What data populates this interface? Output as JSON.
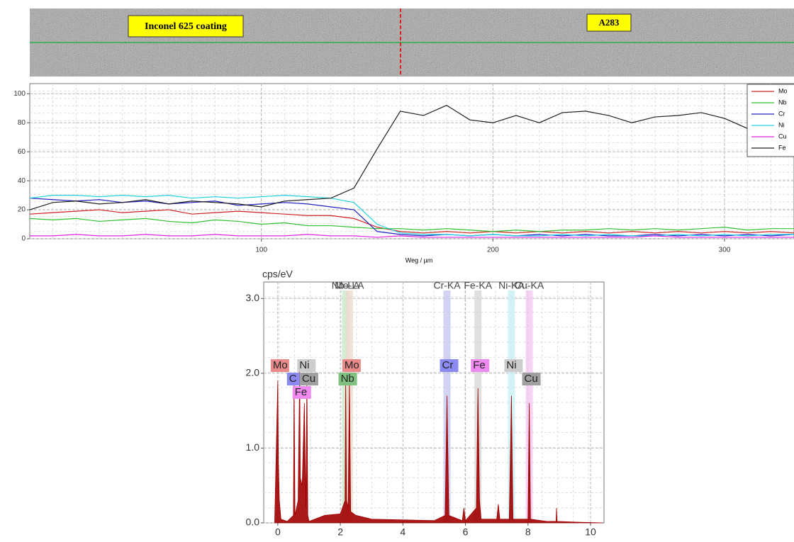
{
  "micrograph": {
    "labels": [
      "Inconel 625 coating",
      "A283"
    ]
  },
  "chart_data": [
    {
      "type": "line",
      "xlabel": "Weg / µm",
      "x": [
        0,
        10,
        20,
        30,
        40,
        50,
        60,
        70,
        80,
        90,
        100,
        110,
        120,
        130,
        140,
        150,
        160,
        170,
        180,
        190,
        200,
        210,
        220,
        230,
        240,
        250,
        260,
        270,
        280,
        290,
        300,
        310,
        320,
        330
      ],
      "xlim": [
        0,
        330
      ],
      "xticks": [
        100,
        200,
        300
      ],
      "ylim": [
        0,
        107
      ],
      "yticks": [
        0,
        20,
        40,
        60,
        80,
        100
      ],
      "grid": true,
      "legend": "upper right",
      "series": [
        {
          "name": "Mo",
          "color": "#d02020",
          "values": [
            17,
            18,
            19,
            20,
            18,
            19,
            20,
            17,
            18,
            19,
            18,
            17,
            16,
            16,
            14,
            8,
            5,
            4,
            5,
            4,
            5,
            4,
            5,
            4,
            5,
            4,
            5,
            4,
            5,
            4,
            5,
            4,
            5,
            4
          ]
        },
        {
          "name": "Nb",
          "color": "#30c030",
          "values": [
            14,
            13,
            14,
            12,
            13,
            14,
            12,
            11,
            13,
            12,
            10,
            11,
            9,
            9,
            8,
            7,
            7,
            6,
            7,
            6,
            5,
            6,
            5,
            6,
            6,
            7,
            6,
            7,
            6,
            7,
            8,
            6,
            7,
            7
          ]
        },
        {
          "name": "Cr",
          "color": "#2020c0",
          "values": [
            28,
            27,
            26,
            27,
            25,
            26,
            24,
            25,
            26,
            23,
            24,
            25,
            24,
            22,
            20,
            5,
            3,
            2,
            3,
            2,
            3,
            2,
            3,
            2,
            3,
            2,
            2,
            3,
            2,
            3,
            2,
            3,
            2,
            3
          ]
        },
        {
          "name": "Ni",
          "color": "#20d0e0",
          "values": [
            28,
            30,
            30,
            29,
            30,
            29,
            30,
            28,
            29,
            28,
            29,
            30,
            29,
            28,
            25,
            10,
            4,
            3,
            3,
            2,
            3,
            2,
            2,
            3,
            2,
            3,
            2,
            2,
            3,
            2,
            3,
            2,
            3,
            3
          ]
        },
        {
          "name": "Cu",
          "color": "#e020e0",
          "values": [
            2,
            2,
            3,
            2,
            2,
            3,
            2,
            2,
            3,
            2,
            2,
            2,
            3,
            2,
            2,
            1,
            2,
            1,
            1,
            1,
            1,
            1,
            1,
            1,
            1,
            1,
            1,
            2,
            1,
            1,
            1,
            1,
            1,
            1
          ]
        },
        {
          "name": "Fe",
          "color": "#202020",
          "values": [
            20,
            25,
            26,
            24,
            25,
            27,
            24,
            26,
            25,
            24,
            22,
            26,
            27,
            28,
            35,
            62,
            88,
            85,
            92,
            82,
            80,
            85,
            80,
            87,
            88,
            85,
            80,
            84,
            85,
            87,
            83,
            76,
            78,
            80
          ]
        }
      ]
    },
    {
      "type": "area",
      "ylabel": "cps/eV",
      "color": "#a00000",
      "x": [
        -0.1,
        0,
        0.02,
        0.05,
        0.1,
        0.3,
        0.5,
        0.52,
        0.55,
        0.65,
        0.7,
        0.72,
        0.78,
        0.85,
        0.9,
        0.93,
        0.96,
        1.0,
        1.5,
        2.0,
        2.15,
        2.17,
        2.2,
        2.25,
        2.29,
        2.33,
        2.5,
        3,
        4,
        5,
        5.35,
        5.41,
        5.47,
        5.9,
        5.95,
        6.0,
        6.35,
        6.4,
        6.45,
        6.5,
        7.0,
        7.05,
        7.1,
        7.4,
        7.47,
        7.52,
        8.0,
        8.04,
        8.08,
        8.6,
        8.9,
        8.91,
        8.93,
        9.5,
        10.4
      ],
      "values": [
        0,
        1.9,
        0.8,
        0.3,
        0.05,
        0.02,
        0.1,
        1.9,
        0.1,
        0.3,
        2.05,
        0.6,
        0.5,
        1.6,
        0.2,
        1.9,
        0.1,
        0.02,
        0.1,
        0.12,
        0.3,
        1.9,
        0.3,
        0.2,
        1.9,
        0.15,
        0.1,
        0.05,
        0.04,
        0.03,
        0.1,
        1.7,
        0.1,
        0.03,
        0.2,
        0.03,
        0.2,
        1.8,
        0.3,
        0.05,
        0.05,
        0.25,
        0.05,
        0.05,
        1.7,
        0.05,
        0.05,
        1.6,
        0.05,
        0.02,
        0.02,
        0.2,
        0.02,
        0.01,
        0
      ],
      "xlim": [
        -0.45,
        10.43
      ],
      "xticks": [
        0,
        2,
        4,
        6,
        8,
        10
      ],
      "ylim": [
        0,
        3.22
      ],
      "yticks": [
        {
          "value": 0,
          "label": "0.0"
        },
        {
          "value": 1,
          "label": "1.0"
        },
        {
          "value": 2,
          "label": "2.0"
        },
        {
          "value": 3,
          "label": "3.0"
        }
      ],
      "grid": true,
      "lines": [
        {
          "label": "Nb-LA",
          "x": 2.17,
          "color": "#c8e8c8"
        },
        {
          "label": "Mo-LA",
          "x": 2.29,
          "color": "#f0d8d0"
        },
        {
          "label": "Cr-KA",
          "x": 5.41,
          "color": "#c8c8f0"
        },
        {
          "label": "Fe-KA",
          "x": 6.4,
          "color": "#d8d8d8"
        },
        {
          "label": "Ni-KA",
          "x": 7.47,
          "color": "#c8f0f4"
        },
        {
          "label": "Cu-KA",
          "x": 8.04,
          "color": "#f4c8f0"
        }
      ],
      "peak_labels": [
        {
          "label": "Mo",
          "x": 0.0,
          "color": "#e88a8a"
        },
        {
          "label": "C",
          "x": 0.52,
          "color": "#8a8af0"
        },
        {
          "label": "Fe",
          "x": 0.7,
          "color": "#f08af0"
        },
        {
          "label": "Cu",
          "x": 0.93,
          "color": "#a0a0a0"
        },
        {
          "label": "Ni",
          "x": 0.85,
          "color": "#cccccc"
        },
        {
          "label": "Nb",
          "x": 2.17,
          "color": "#80c080"
        },
        {
          "label": "Mo",
          "x": 2.29,
          "color": "#e88a8a"
        },
        {
          "label": "Cr",
          "x": 5.41,
          "color": "#8a8af0"
        },
        {
          "label": "Fe",
          "x": 6.4,
          "color": "#f08af0"
        },
        {
          "label": "Ni",
          "x": 7.47,
          "color": "#cccccc"
        },
        {
          "label": "Cu",
          "x": 8.04,
          "color": "#a0a0a0"
        }
      ]
    }
  ]
}
